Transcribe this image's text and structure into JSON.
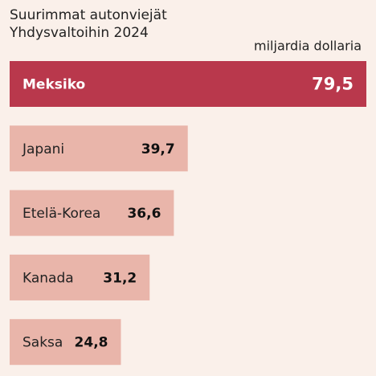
{
  "chart_data": {
    "type": "hbar",
    "title": "Suurimmat autonviejät Yhdysvaltoihin 2024",
    "unit_label": "miljardia dollaria",
    "categories": [
      "Meksiko",
      "Japani",
      "Etelä-Korea",
      "Kanada",
      "Saksa"
    ],
    "values": [
      79.5,
      39.7,
      36.6,
      31.2,
      24.8
    ],
    "value_labels": [
      "79,5",
      "39,7",
      "36,6",
      "31,2",
      "24,8"
    ],
    "colors": [
      "#b9384c",
      "#e9b5aa",
      "#e9b5aa",
      "#e9b5aa",
      "#e9b5aa"
    ]
  }
}
